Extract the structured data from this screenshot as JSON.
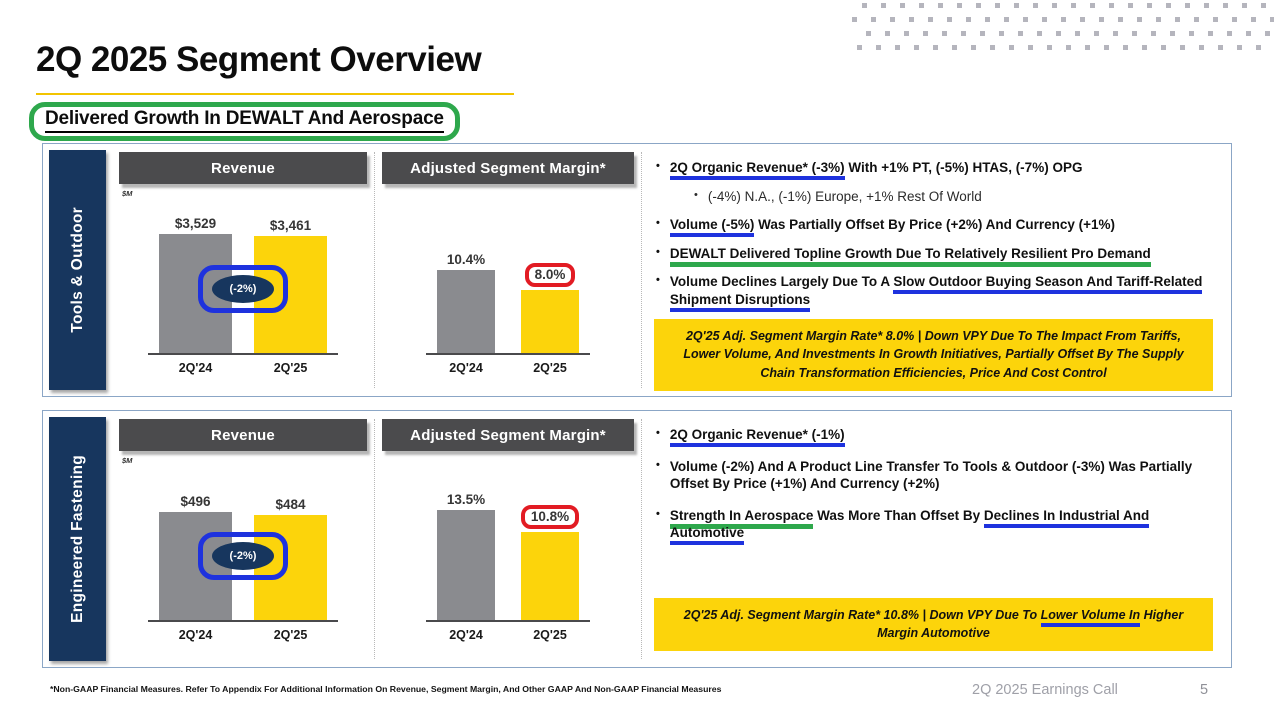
{
  "slide": {
    "title": "2Q 2025 Segment Overview",
    "subtitle": "Delivered Growth In DEWALT And Aerospace",
    "footnote": "*Non-GAAP Financial Measures. Refer To Appendix For Additional Information On Revenue, Segment Margin, And Other GAAP And Non-GAAP Financial Measures",
    "footer_label": "2Q 2025 Earnings Call",
    "page_number": "5"
  },
  "colors": {
    "navy": "#17365e",
    "yellow": "#fcd40b",
    "bar_gray": "#8a8b8f",
    "header_gray": "#4b4b4d",
    "annotation_blue": "#1e32de",
    "annotation_green": "#2ea84c",
    "annotation_red": "#e21b23",
    "panel_border": "#8ba6c6"
  },
  "segments": [
    {
      "name": "Tools & Outdoor",
      "bullets": [
        {
          "segments": [
            {
              "t": "2Q Organic Revenue* (-3%)",
              "u": "blue"
            },
            {
              "t": " With +1% PT, (-5%) HTAS, (-7%) OPG"
            }
          ]
        },
        {
          "indent": 1,
          "segments": [
            {
              "t": "(-4%) N.A.,  (-1%) Europe, +1% Rest Of World"
            }
          ]
        },
        {
          "segments": [
            {
              "t": "Volume (-5%)",
              "u": "blue"
            },
            {
              "t": " Was Partially Offset By Price (+2%) And Currency (+1%)"
            }
          ]
        },
        {
          "segments": [
            {
              "t": "DEWALT Delivered Topline Growth Due To Relatively Resilient Pro Demand",
              "u": "green"
            }
          ]
        },
        {
          "segments": [
            {
              "t": "Volume Declines Largely Due To A "
            },
            {
              "t": "Slow Outdoor Buying Season And Tariff-Related Shipment Disruptions",
              "u": "blue"
            }
          ]
        }
      ],
      "callout": [
        {
          "t": "2Q'25 Adj. Segment Margin Rate* 8.0% | Down VPY Due To The Impact From Tariffs, Lower Volume, And Investments In Growth Initiatives, Partially Offset By The Supply Chain Transformation Efficiencies, Price And Cost Control"
        }
      ]
    },
    {
      "name": "Engineered Fastening",
      "bullets": [
        {
          "segments": [
            {
              "t": "2Q Organic Revenue* (-1%)",
              "u": "blue"
            }
          ]
        },
        {
          "segments": [
            {
              "t": "Volume (-2%) And A Product Line Transfer To Tools & Outdoor (-3%) Was Partially Offset By Price (+1%) And Currency (+2%)"
            }
          ]
        },
        {
          "segments": [
            {
              "t": "Strength In Aerospace",
              "u": "green"
            },
            {
              "t": " Was More Than Offset By "
            },
            {
              "t": "Declines In Industrial And Automotive",
              "u": "blue"
            }
          ]
        }
      ],
      "callout": [
        {
          "t": "2Q'25 Adj. Segment Margin Rate* 10.8% | Down VPY Due To "
        },
        {
          "t": "Lower Volume In",
          "u": "blue"
        },
        {
          "t": " Higher Margin Automotive"
        }
      ]
    }
  ],
  "chart_data": [
    {
      "type": "bar",
      "segment": "Tools & Outdoor",
      "title": "Revenue",
      "unit": "$M",
      "categories": [
        "2Q'24",
        "2Q'25"
      ],
      "values": [
        3529,
        3461
      ],
      "value_labels": [
        "$3,529",
        "$3,461"
      ],
      "series_colors": [
        "gray",
        "yellow"
      ],
      "ylim": [
        0,
        4000
      ],
      "annotation": {
        "style": "navy-oval-blue-ring",
        "change_label": "(-2%)"
      }
    },
    {
      "type": "bar",
      "segment": "Tools & Outdoor",
      "title": "Adjusted Segment Margin*",
      "categories": [
        "2Q'24",
        "2Q'25"
      ],
      "values": [
        10.4,
        8.0
      ],
      "value_labels": [
        "10.4%",
        "8.0%"
      ],
      "series_colors": [
        "gray",
        "yellow"
      ],
      "ylim": [
        0,
        17
      ],
      "annotation": {
        "style": "red-box",
        "highlight_label_index": 1
      }
    },
    {
      "type": "bar",
      "segment": "Engineered Fastening",
      "title": "Revenue",
      "unit": "$M",
      "categories": [
        "2Q'24",
        "2Q'25"
      ],
      "values": [
        496,
        484
      ],
      "value_labels": [
        "$496",
        "$484"
      ],
      "series_colors": [
        "gray",
        "yellow"
      ],
      "ylim": [
        0,
        620
      ],
      "annotation": {
        "style": "navy-oval-blue-ring",
        "change_label": "(-2%)"
      }
    },
    {
      "type": "bar",
      "segment": "Engineered Fastening",
      "title": "Adjusted Segment Margin*",
      "categories": [
        "2Q'24",
        "2Q'25"
      ],
      "values": [
        13.5,
        10.8
      ],
      "value_labels": [
        "13.5%",
        "10.8%"
      ],
      "series_colors": [
        "gray",
        "yellow"
      ],
      "ylim": [
        0,
        16.5
      ],
      "annotation": {
        "style": "red-box",
        "highlight_label_index": 1
      }
    }
  ]
}
